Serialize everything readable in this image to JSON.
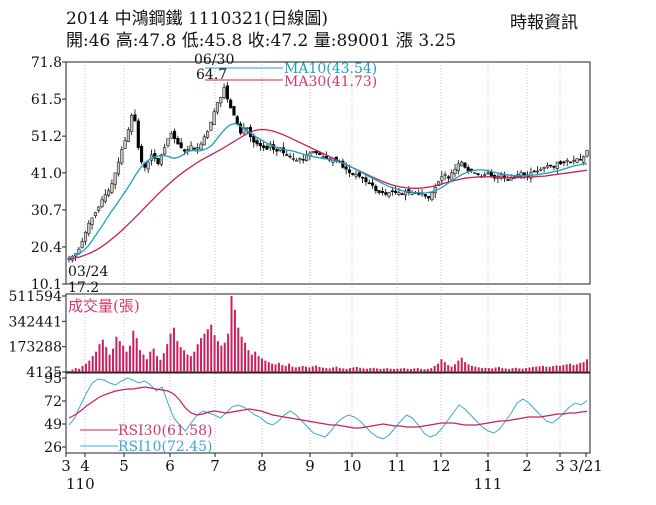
{
  "header": {
    "title": "2014  中鴻鋼鐵 1110321(日線圖)",
    "quote": "開:46 高:47.8 低:45.8 收:47.2 量:89001 漲 3.25",
    "source": "時報資訊"
  },
  "colors": {
    "up_candle": "#c8c8c8",
    "down_candle": "#000000",
    "ma10": "#1aa0c8",
    "ma30": "#c8205a",
    "volume": "#cc1f5e",
    "rsi30": "#c8205a",
    "rsi10": "#3aa8d8",
    "legend_text": "#d4386e",
    "grid": "#9a9a9a"
  },
  "chart_data": [
    {
      "type": "candlestick",
      "panel": "price",
      "ylim": [
        10.1,
        71.8
      ],
      "yticks": [
        "71.8",
        "61.5",
        "51.2",
        "41.0",
        "30.7",
        "20.4",
        "10.1"
      ],
      "annotations": [
        {
          "label": "06/30",
          "value": "64.7"
        },
        {
          "label": "03/24",
          "value": "17.2"
        }
      ],
      "legend": [
        "MA10(43.54)",
        "MA30(41.73)"
      ],
      "close_path": [
        17.2,
        17.8,
        18.5,
        19.8,
        22,
        24.5,
        27,
        28.5,
        30,
        31.5,
        33.5,
        35,
        36,
        38,
        41,
        44,
        47.5,
        50,
        53,
        57,
        55.5,
        48,
        44,
        42.5,
        44,
        46,
        45,
        43.5,
        46,
        48,
        50.5,
        52,
        50.5,
        49,
        48,
        47,
        47.5,
        48.5,
        47.5,
        48,
        49,
        51,
        52.5,
        55,
        58,
        60.5,
        62,
        64.7,
        61.5,
        59,
        57,
        54.5,
        52,
        53.5,
        53.5,
        51,
        49.5,
        49,
        48.5,
        48,
        47.5,
        49,
        47.5,
        47,
        48,
        46.5,
        46,
        45.5,
        45,
        44.5,
        45,
        44.5,
        46,
        46.5,
        47,
        46.5,
        46,
        45.5,
        45,
        44.5,
        45,
        44.5,
        44,
        42.5,
        42,
        41,
        40.5,
        40.5,
        40,
        39.5,
        38.5,
        38,
        37.5,
        36,
        35.5,
        35.5,
        35,
        35.5,
        36,
        35.5,
        35.5,
        35,
        36,
        35.5,
        35.5,
        35.5,
        35,
        35.5,
        34.5,
        34,
        35.5,
        37,
        38.5,
        40,
        40.5,
        39.5,
        41,
        42,
        43.5,
        44,
        42.5,
        41.5,
        41.5,
        41,
        40.5,
        40,
        40.5,
        41,
        40,
        39.5,
        40,
        40.5,
        39.5,
        39,
        39.5,
        40,
        40.5,
        41,
        40.5,
        40,
        41,
        41.5,
        41.5,
        42,
        42.5,
        43,
        43,
        42.5,
        44,
        43.5,
        44,
        44.5,
        44,
        44.5,
        45,
        44.5,
        45.5,
        47.2
      ],
      "ma10_path": [
        17.4,
        17.8,
        18.4,
        19.3,
        20.6,
        22.4,
        24.4,
        26.3,
        28.4,
        30.4,
        32.2,
        34.2,
        36.1,
        38.2,
        40.4,
        42.3,
        43.8,
        44.8,
        45.4,
        45.7,
        45.8,
        45.5,
        45.0,
        45.3,
        46.0,
        47.0,
        47.2,
        47.0,
        47.3,
        47.7,
        48.6,
        50.2,
        51.9,
        53.4,
        54.4,
        54.7,
        54.0,
        53.1,
        52.2,
        51.3,
        50.5,
        49.7,
        49.0,
        48.4,
        48.0,
        47.6,
        47.3,
        47.1,
        46.7,
        46.3,
        45.9,
        45.6,
        45.3,
        45.1,
        44.9,
        44.6,
        44.3,
        44.0,
        43.5,
        42.9,
        42.2,
        41.5,
        40.8,
        40.1,
        39.4,
        38.7,
        38.0,
        37.4,
        36.9,
        36.5,
        36.1,
        35.8,
        35.6,
        35.4,
        35.4,
        35.4,
        35.6,
        36.0,
        36.6,
        37.4,
        38.3,
        39.2,
        40.0,
        40.7,
        41.3,
        41.6,
        41.8,
        41.8,
        41.6,
        41.3,
        41.0,
        40.7,
        40.5,
        40.3,
        40.2,
        40.2,
        40.2,
        40.3,
        40.4,
        40.6,
        40.8,
        41.0,
        41.3,
        41.6,
        42.0,
        42.4,
        42.8,
        43.1,
        43.4,
        43.54
      ],
      "ma30_path": [
        17.0,
        17.3,
        17.6,
        18.1,
        18.7,
        19.4,
        20.3,
        21.3,
        22.5,
        23.7,
        25.0,
        26.4,
        27.8,
        29.3,
        30.8,
        32.3,
        33.8,
        35.3,
        36.7,
        38.0,
        39.3,
        40.5,
        41.6,
        42.6,
        43.6,
        44.5,
        45.3,
        46.1,
        46.9,
        47.7,
        48.6,
        49.5,
        50.4,
        51.3,
        52.1,
        52.7,
        53.0,
        53.0,
        52.8,
        52.4,
        51.9,
        51.3,
        50.6,
        49.9,
        49.2,
        48.5,
        47.8,
        47.1,
        46.4,
        45.7,
        45.0,
        44.3,
        43.6,
        42.9,
        42.2,
        41.5,
        40.8,
        40.1,
        39.4,
        38.8,
        38.2,
        37.7,
        37.3,
        37.0,
        36.8,
        36.7,
        36.7,
        36.8,
        37.0,
        37.3,
        37.7,
        38.1,
        38.5,
        38.9,
        39.2,
        39.5,
        39.7,
        39.8,
        39.9,
        39.9,
        39.9,
        39.8,
        39.8,
        39.7,
        39.7,
        39.7,
        39.7,
        39.8,
        39.9,
        40.0,
        40.1,
        40.3,
        40.5,
        40.7,
        40.9,
        41.1,
        41.3,
        41.5,
        41.73
      ],
      "xtick_labels": [
        "3",
        "4",
        "5",
        "6",
        "7",
        "8",
        "9",
        "10",
        "11",
        "12",
        "1",
        "2",
        "3",
        "3/21"
      ],
      "year_labels": [
        "110",
        "111"
      ]
    },
    {
      "type": "bar",
      "panel": "volume",
      "ylabel": "成交量(張)",
      "yticks": [
        "511594",
        "342441",
        "173288",
        "4135"
      ],
      "ylim": [
        4135,
        511594
      ],
      "values": [
        12000,
        20000,
        30000,
        26000,
        45000,
        60000,
        80000,
        110000,
        140000,
        190000,
        220000,
        170000,
        120000,
        160000,
        240000,
        210000,
        180000,
        140000,
        180000,
        280000,
        230000,
        150000,
        120000,
        90000,
        140000,
        160000,
        110000,
        85000,
        130000,
        190000,
        260000,
        300000,
        210000,
        170000,
        150000,
        120000,
        110000,
        140000,
        190000,
        230000,
        260000,
        290000,
        320000,
        250000,
        210000,
        180000,
        200000,
        260000,
        511594,
        420000,
        300000,
        240000,
        200000,
        150000,
        120000,
        140000,
        110000,
        95000,
        80000,
        70000,
        60000,
        55000,
        65000,
        50000,
        45000,
        60000,
        40000,
        35000,
        38000,
        45000,
        40000,
        35000,
        42000,
        48000,
        38000,
        33000,
        30000,
        28000,
        35000,
        40000,
        30000,
        28000,
        25000,
        30000,
        35000,
        38000,
        32000,
        28000,
        26000,
        30000,
        32000,
        28000,
        25000,
        27000,
        30000,
        26000,
        24000,
        25000,
        28000,
        30000,
        26000,
        24000,
        28000,
        30000,
        25000,
        23000,
        25000,
        30000,
        45000,
        60000,
        90000,
        70000,
        50000,
        40000,
        55000,
        80000,
        100000,
        70000,
        55000,
        45000,
        40000,
        35000,
        30000,
        32000,
        30000,
        28000,
        34000,
        38000,
        30000,
        28000,
        25000,
        30000,
        32000,
        28000,
        26000,
        30000,
        34000,
        38000,
        40000,
        42000,
        45000,
        40000,
        38000,
        44000,
        48000,
        45000,
        50000,
        55000,
        60000,
        50000,
        55000,
        65000,
        70000,
        89001
      ]
    },
    {
      "type": "line",
      "panel": "rsi",
      "yticks": [
        "95",
        "72",
        "49",
        "26"
      ],
      "ylim": [
        20,
        100
      ],
      "series": [
        {
          "name": "RSI30(61.58)",
          "values": [
            55,
            58,
            62,
            67,
            71,
            75,
            78,
            80,
            82,
            83,
            84,
            84,
            85,
            86,
            85,
            84,
            83,
            82,
            79,
            73,
            65,
            60,
            58,
            59,
            61,
            62,
            61,
            60,
            61,
            62,
            63,
            64,
            63,
            62,
            60,
            58,
            57,
            56,
            55,
            54,
            53,
            52,
            51,
            50,
            49,
            48,
            48,
            47,
            46,
            45,
            45,
            46,
            47,
            48,
            49,
            48,
            47,
            47,
            46,
            46,
            46,
            47,
            48,
            49,
            50,
            50,
            50,
            49,
            48,
            48,
            48,
            49,
            50,
            51,
            52,
            52,
            53,
            54,
            55,
            56,
            56,
            56,
            57,
            58,
            59,
            59,
            60,
            60,
            61,
            61.58
          ]
        },
        {
          "name": "RSI10(72.45)",
          "values": [
            48,
            55,
            68,
            80,
            90,
            94,
            93,
            90,
            88,
            92,
            95,
            93,
            90,
            92,
            88,
            82,
            86,
            70,
            55,
            48,
            42,
            50,
            58,
            62,
            60,
            58,
            55,
            60,
            66,
            68,
            66,
            62,
            58,
            55,
            50,
            48,
            52,
            58,
            62,
            58,
            52,
            46,
            40,
            38,
            36,
            42,
            50,
            55,
            58,
            56,
            52,
            46,
            40,
            36,
            34,
            38,
            45,
            52,
            58,
            55,
            48,
            40,
            36,
            38,
            44,
            52,
            60,
            68,
            64,
            58,
            52,
            46,
            42,
            40,
            44,
            52,
            60,
            70,
            74,
            70,
            64,
            58,
            52,
            50,
            54,
            60,
            66,
            70,
            68,
            72.45
          ]
        }
      ]
    }
  ]
}
